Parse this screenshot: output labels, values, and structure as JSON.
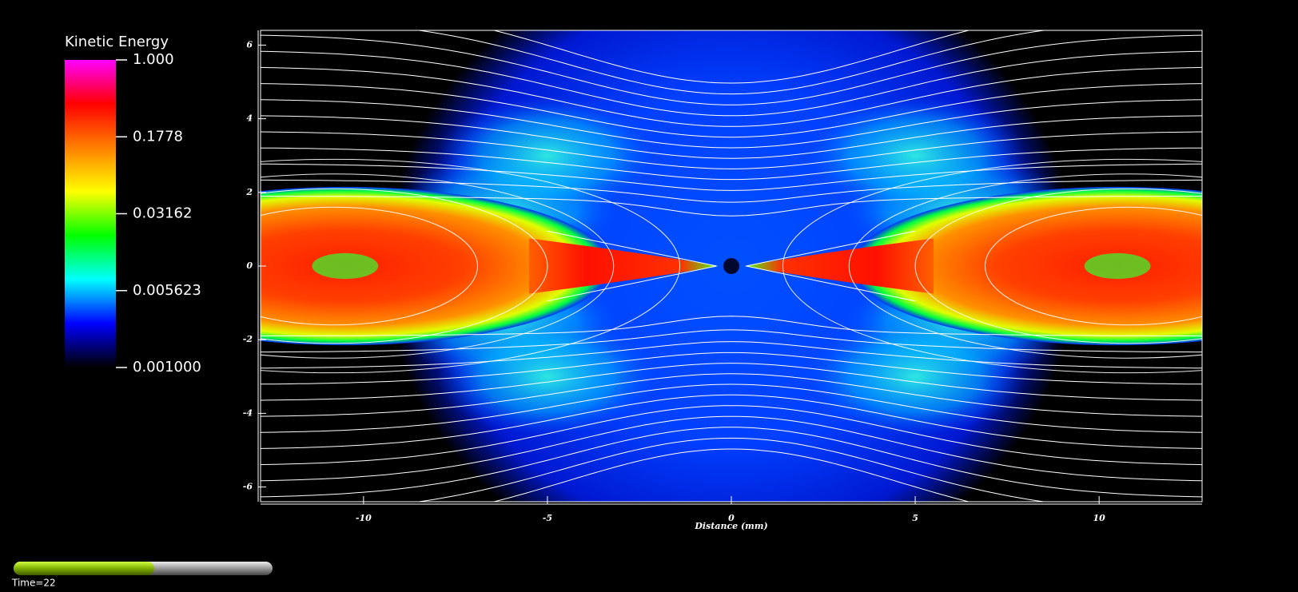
{
  "chart_data": {
    "type": "heatmap",
    "xlabel": "Distance (mm)",
    "xlim": [
      -12.8,
      12.8
    ],
    "ylim": [
      -6.4,
      6.4
    ],
    "xticks": [
      -10,
      -5,
      0,
      5,
      10
    ],
    "yticks": [
      -6,
      -4,
      -2,
      0,
      2,
      4,
      6
    ],
    "colorbar": {
      "title": "Kinetic Energy",
      "scale": "log",
      "clim": [
        0.001,
        1
      ],
      "ticks": [
        {
          "value": 1,
          "label": "1.000"
        },
        0.1778,
        0.03162,
        0.005623,
        {
          "value": 0.001,
          "label": "0.001000"
        }
      ],
      "colors": [
        "#000000",
        "#0000ff",
        "#00ffff",
        "#00ff00",
        "#ffff00",
        "#ff8000",
        "#ff0000",
        "#ff00ff"
      ]
    },
    "time_label": "Time=22"
  }
}
